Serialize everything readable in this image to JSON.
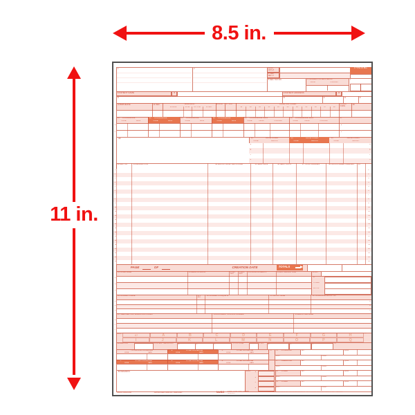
{
  "dimensions": {
    "width_label": "8.5 in.",
    "height_label": "11 in."
  },
  "colors": {
    "arrow_red": "#f01212",
    "ink": "#cf5540",
    "pink_label": "#f9dcd6",
    "pink_row": "#fce9e6",
    "solid_orange": "#e8764f",
    "dx_letter": "#eeab92",
    "form_border": "#4f4f4f",
    "grid_line": "rgba(199,78,54,0.75)"
  },
  "form": {
    "b1": "1",
    "b2": "2",
    "b3a": "3a PAT. CNTL #",
    "b3b": "b. MED. REC. #",
    "b4": "4 TYPE OF BILL",
    "b5": "5 FED. TAX NO.",
    "b6": "6 STATEMENT COVERS PERIOD",
    "from": "FROM",
    "through": "THROUGH",
    "b7": "7",
    "b8": "8 PATIENT NAME",
    "b9": "9 PATIENT ADDRESS",
    "sub_letters": [
      "a",
      "b",
      "c",
      "d",
      "e"
    ],
    "b10": "10 BIRTHDATE",
    "b11": "11 SEX",
    "admission": "ADMISSION",
    "adm_subs": [
      "12 DATE",
      "13 HR",
      "14 TYPE",
      "15 SRC"
    ],
    "b16": "16 DHR",
    "b17": "17 STAT",
    "condition_codes": "CONDITION CODES",
    "condition_nums": [
      "18",
      "19",
      "20",
      "21",
      "22",
      "23",
      "24",
      "25",
      "26",
      "27",
      "28"
    ],
    "b29": "29 ACDT STATE",
    "b30": "30",
    "occ_nums": [
      "31",
      "32",
      "33",
      "34"
    ],
    "occurrence": "OCCURRENCE",
    "code": "CODE",
    "date": "DATE",
    "occ_span_nums": [
      "35",
      "36"
    ],
    "occurrence_span": "OCCURRENCE SPAN",
    "b37": "37",
    "b38": "38",
    "value_nums": [
      "39",
      "40",
      "41"
    ],
    "value_codes": "VALUE CODES",
    "amount": "AMOUNT",
    "row_letters": [
      "a",
      "b",
      "c",
      "d"
    ],
    "svc_cols": [
      "42 REV. CD.",
      "43 DESCRIPTION",
      "44 HCPCS / RATE / HIPPS CODE",
      "45 SERV. DATE",
      "46 SERV. UNITS",
      "47 TOTAL CHARGES",
      "48 NON-COVERED CHARGES",
      "49"
    ],
    "line_numbers": [
      "1",
      "2",
      "3",
      "4",
      "5",
      "6",
      "7",
      "8",
      "9",
      "10",
      "11",
      "12",
      "13",
      "14",
      "15",
      "16",
      "17",
      "18",
      "19",
      "20",
      "21",
      "22",
      "23"
    ],
    "page_label": "PAGE",
    "of_label": "OF",
    "creation_date": "CREATION DATE",
    "totals": "TOTALS",
    "payer_cols": [
      "50 PAYER NAME",
      "51 HEALTH PLAN ID",
      "52 REL. INFO",
      "53 ASG. BEN.",
      "54 PRIOR PAYMENTS",
      "55 EST. AMOUNT DUE"
    ],
    "b56": "56 NPI",
    "b57": "57",
    "other": "OTHER",
    "prv_id": "PRV ID",
    "row_abc": [
      "A",
      "B",
      "C"
    ],
    "insured_cols": [
      "58 INSURED'S NAME",
      "59 P. REL",
      "60 INSURED'S UNIQUE ID",
      "61 GROUP NAME",
      "62 INSURANCE GROUP NO."
    ],
    "auth_cols": [
      "63 TREATMENT AUTHORIZATION CODES",
      "64 DOCUMENT CONTROL NUMBER",
      "65 EMPLOYER NAME"
    ],
    "b66": "66 DX",
    "b67": "67",
    "b68": "68",
    "dx_row1": [
      "A",
      "B",
      "C",
      "D",
      "E",
      "F",
      "G",
      "H"
    ],
    "dx_row2": [
      "I",
      "J",
      "K",
      "L",
      "M",
      "N",
      "O",
      "P",
      "Q"
    ],
    "b69": "69 ADMIT DX",
    "b70": "70 PATIENT REASON DX",
    "b71": "71 PPS CODE",
    "b72": "72 ECI",
    "b73": "73",
    "b74": "74 PRINCIPAL PROCEDURE",
    "other_procedure": "OTHER PROCEDURE",
    "proc_letters": [
      "a.",
      "b.",
      "c.",
      "d.",
      "e."
    ],
    "b75": "75",
    "providers": [
      {
        "no": "76",
        "role": "ATTENDING"
      },
      {
        "no": "77",
        "role": "OPERATING"
      },
      {
        "no": "78",
        "role": "OTHER"
      },
      {
        "no": "79",
        "role": "OTHER"
      }
    ],
    "npi": "NPI",
    "qual": "QUAL",
    "last": "LAST",
    "first": "FIRST",
    "b80": "80 REMARKS",
    "b81": "81CC",
    "footer": {
      "left1": "UB-04 CMS-1450",
      "left2": "APPROVED OMB NO. 0938-0997",
      "org": "NUBC",
      "org_sub": "National Uniform Billing Committee",
      "lic": "LIC9213257",
      "right": "THE CERTIFICATIONS ON THE REVERSE APPLY TO THIS BILL AND ARE MADE A PART HEREOF."
    }
  }
}
